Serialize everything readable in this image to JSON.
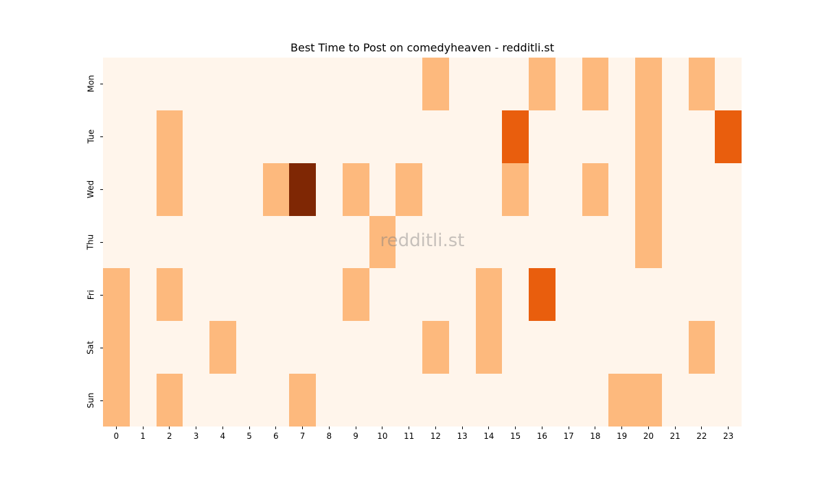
{
  "chart_data": {
    "type": "heatmap",
    "title": "Best Time to Post on comedyheaven - redditli.st",
    "xlabel": "",
    "ylabel": "",
    "x": [
      "0",
      "1",
      "2",
      "3",
      "4",
      "5",
      "6",
      "7",
      "8",
      "9",
      "10",
      "11",
      "12",
      "13",
      "14",
      "15",
      "16",
      "17",
      "18",
      "19",
      "20",
      "21",
      "22",
      "23"
    ],
    "y": [
      "Mon",
      "Tue",
      "Wed",
      "Thu",
      "Fri",
      "Sat",
      "Sun"
    ],
    "values": [
      [
        0,
        0,
        0,
        0,
        0,
        0,
        0,
        0,
        0,
        0,
        0,
        0,
        1,
        0,
        0,
        0,
        1,
        0,
        1,
        0,
        1,
        0,
        1,
        0
      ],
      [
        0,
        0,
        1,
        0,
        0,
        0,
        0,
        0,
        0,
        0,
        0,
        0,
        0,
        0,
        0,
        2,
        0,
        0,
        0,
        0,
        1,
        0,
        0,
        2
      ],
      [
        0,
        0,
        1,
        0,
        0,
        0,
        1,
        3,
        0,
        1,
        0,
        1,
        0,
        0,
        0,
        1,
        0,
        0,
        1,
        0,
        1,
        0,
        0,
        0
      ],
      [
        0,
        0,
        0,
        0,
        0,
        0,
        0,
        0,
        0,
        0,
        1,
        0,
        0,
        0,
        0,
        0,
        0,
        0,
        0,
        0,
        1,
        0,
        0,
        0
      ],
      [
        1,
        0,
        1,
        0,
        0,
        0,
        0,
        0,
        0,
        1,
        0,
        0,
        0,
        0,
        1,
        0,
        2,
        0,
        0,
        0,
        0,
        0,
        0,
        0
      ],
      [
        1,
        0,
        0,
        0,
        1,
        0,
        0,
        0,
        0,
        0,
        0,
        0,
        1,
        0,
        1,
        0,
        0,
        0,
        0,
        0,
        0,
        0,
        1,
        0
      ],
      [
        1,
        0,
        1,
        0,
        0,
        0,
        0,
        1,
        0,
        0,
        0,
        0,
        0,
        0,
        0,
        0,
        0,
        0,
        0,
        1,
        1,
        0,
        0,
        0
      ]
    ],
    "colormap": "Oranges",
    "color_scale": [
      "#fff5eb",
      "#fdb97d",
      "#e95e0d",
      "#7f2704"
    ],
    "watermark": "redditli.st",
    "grid": false,
    "legend": "none"
  }
}
